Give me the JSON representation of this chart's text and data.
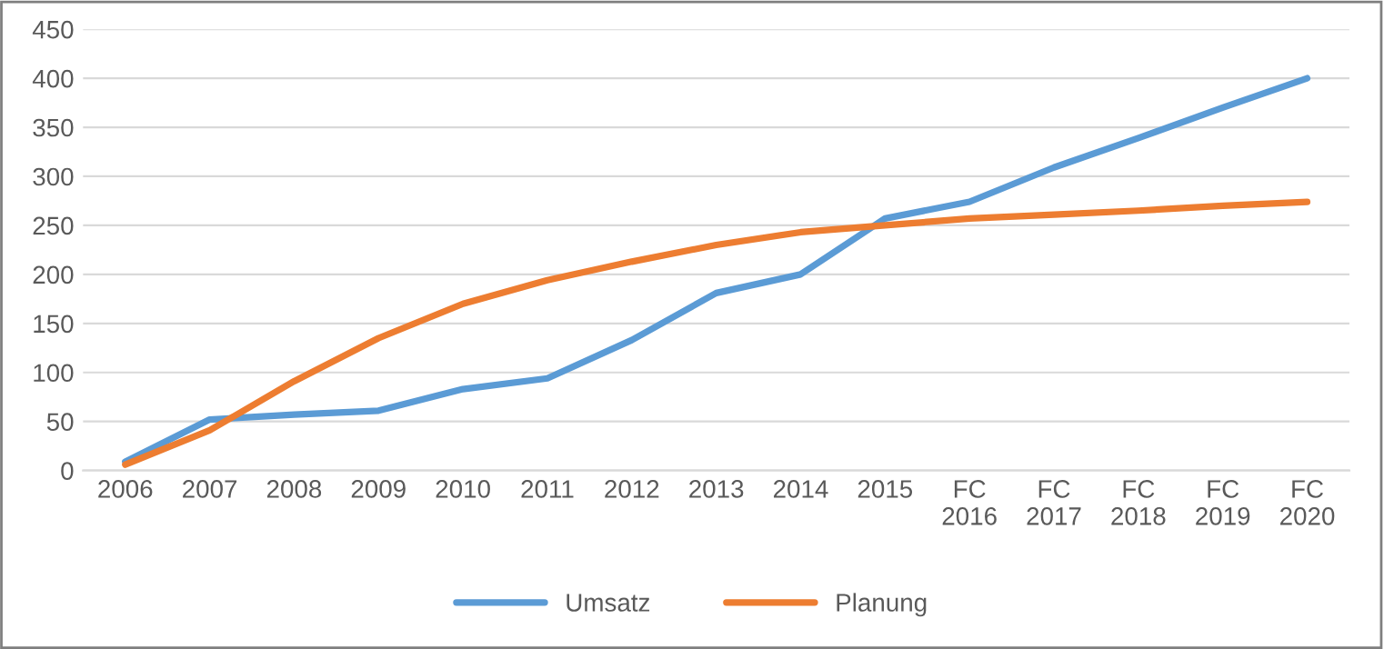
{
  "chart_data": {
    "type": "line",
    "categories": [
      "2006",
      "2007",
      "2008",
      "2009",
      "2010",
      "2011",
      "2012",
      "2013",
      "2014",
      "2015",
      "FC\n2016",
      "FC\n2017",
      "FC\n2018",
      "FC\n2019",
      "FC\n2020"
    ],
    "series": [
      {
        "name": "Umsatz",
        "color": "#5b9bd5",
        "values": [
          9,
          52,
          57,
          61,
          83,
          94,
          133,
          181,
          200,
          257,
          274,
          309,
          339,
          370,
          400
        ]
      },
      {
        "name": "Planung",
        "color": "#ed7d31",
        "values": [
          6,
          41,
          91,
          135,
          170,
          194,
          213,
          230,
          243,
          250,
          257,
          261,
          265,
          270,
          274
        ]
      }
    ],
    "ylim": [
      0,
      450
    ],
    "yticks": [
      0,
      50,
      100,
      150,
      200,
      250,
      300,
      350,
      400,
      450
    ],
    "grid": "y",
    "legend": "bottom",
    "marker": "none",
    "line_style": "solid"
  }
}
